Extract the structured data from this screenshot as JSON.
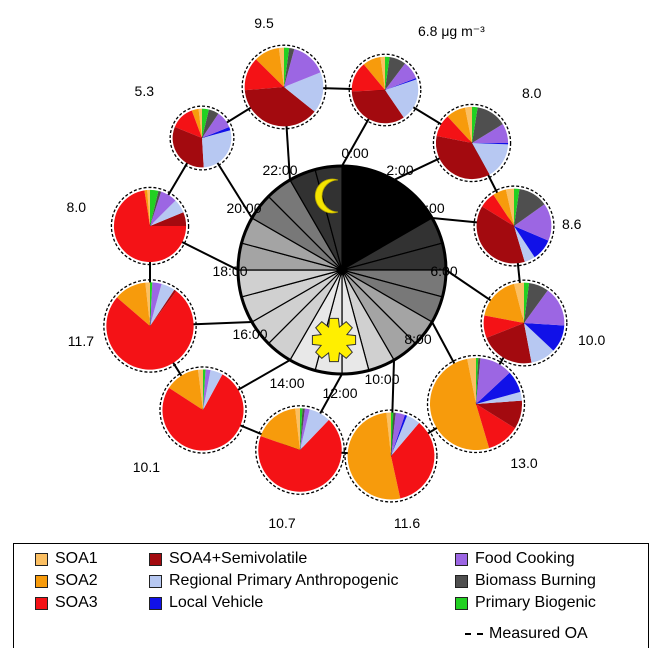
{
  "chart_data": {
    "type": "pie",
    "unit_label": "μg m⁻³",
    "colors": {
      "SOA1": "#fbbf62",
      "SOA2": "#f79b0c",
      "SOA3": "#f41216",
      "SOA4+Semivolatile": "#a30a0f",
      "Regional Primary Anthropogenic": "#b7c8f2",
      "Local Vehicle": "#1111e8",
      "Food Cooking": "#9c66e3",
      "Biomass Burning": "#4f4f4f",
      "Primary Biogenic": "#22d022"
    },
    "legend": {
      "items": [
        {
          "label": "SOA1",
          "key": "SOA1"
        },
        {
          "label": "SOA2",
          "key": "SOA2"
        },
        {
          "label": "SOA3",
          "key": "SOA3"
        },
        {
          "label": "SOA4+Semivolatile",
          "key": "SOA4+Semivolatile"
        },
        {
          "label": "Regional Primary Anthropogenic",
          "key": "Regional Primary Anthropogenic"
        },
        {
          "label": "Local Vehicle",
          "key": "Local Vehicle"
        },
        {
          "label": "Food Cooking",
          "key": "Food Cooking"
        },
        {
          "label": "Biomass Burning",
          "key": "Biomass Burning"
        },
        {
          "label": "Primary Biogenic",
          "key": "Primary Biogenic"
        }
      ],
      "measured_label": "Measured OA"
    },
    "clock_labels": [
      "0:00",
      "2:00",
      "4:00",
      "6:00",
      "8:00",
      "10:00",
      "12:00",
      "14:00",
      "16:00",
      "18:00",
      "20:00",
      "22:00"
    ],
    "hour_shading": [
      "#000000",
      "#000000",
      "#000000",
      "#000000",
      "#323232",
      "#323232",
      "#787878",
      "#787878",
      "#a4a4a4",
      "#a4a4a4",
      "#d0d0d0",
      "#e8e8e8",
      "#e8e8e8",
      "#e8e8e8",
      "#d0d0d0",
      "#d0d0d0",
      "#d0d0d0",
      "#d0d0d0",
      "#a4a4a4",
      "#a4a4a4",
      "#787878",
      "#787878",
      "#323232",
      "#323232"
    ],
    "pies": [
      {
        "time": "0:00",
        "total_label": "6.8 μg m⁻³",
        "total": 6.8,
        "slices": {
          "SOA2": 0.6,
          "SOA3": 1.0,
          "SOA4+Semivolatile": 2.3,
          "Regional Primary Anthropogenic": 1.4,
          "Local Vehicle": 0.05,
          "Food Cooking": 0.6,
          "Biomass Burning": 0.55,
          "Primary Biogenic": 0.15,
          "SOA1": 0.15
        }
      },
      {
        "time": "2:00",
        "total_label": "8.0",
        "total": 8.0,
        "slices": {
          "SOA1": 0.25,
          "SOA2": 0.7,
          "SOA3": 0.8,
          "SOA4+Semivolatile": 2.9,
          "Regional Primary Anthropogenic": 1.3,
          "Local Vehicle": 0.05,
          "Food Cooking": 0.7,
          "Biomass Burning": 1.1,
          "Primary Biogenic": 0.2
        }
      },
      {
        "time": "4:00",
        "total_label": "8.6",
        "total": 8.6,
        "slices": {
          "SOA1": 0.3,
          "SOA2": 0.5,
          "SOA3": 0.6,
          "SOA4+Semivolatile": 3.3,
          "Regional Primary Anthropogenic": 0.4,
          "Local Vehicle": 0.8,
          "Food Cooking": 1.4,
          "Biomass Burning": 1.1,
          "Primary Biogenic": 0.2
        }
      },
      {
        "time": "6:00",
        "total_label": "10.0",
        "total": 10.0,
        "slices": {
          "SOA1": 0.4,
          "SOA2": 1.8,
          "SOA3": 0.9,
          "SOA4+Semivolatile": 2.2,
          "Regional Primary Anthropogenic": 1.0,
          "Local Vehicle": 1.1,
          "Food Cooking": 1.6,
          "Biomass Burning": 0.8,
          "Primary Biogenic": 0.2
        }
      },
      {
        "time": "8:00",
        "total_label": "13.0",
        "total": 13.0,
        "slices": {
          "SOA1": 0.4,
          "SOA2": 6.7,
          "SOA3": 1.5,
          "SOA4+Semivolatile": 1.3,
          "Regional Primary Anthropogenic": 0.4,
          "Local Vehicle": 1.0,
          "Food Cooking": 1.5,
          "Biomass Burning": 0.1,
          "Primary Biogenic": 0.1
        }
      },
      {
        "time": "10:00",
        "total_label": "11.6",
        "total": 11.6,
        "slices": {
          "SOA1": 0.2,
          "SOA2": 6.0,
          "SOA3": 4.1,
          "SOA4+Semivolatile": 0.0,
          "Regional Primary Anthropogenic": 0.6,
          "Local Vehicle": 0.1,
          "Food Cooking": 0.4,
          "Biomass Burning": 0.1,
          "Primary Biogenic": 0.1
        }
      },
      {
        "time": "12:00",
        "total_label": "10.7",
        "total": 10.7,
        "slices": {
          "SOA1": 0.2,
          "SOA2": 1.9,
          "SOA3": 7.3,
          "SOA4+Semivolatile": 0.0,
          "Regional Primary Anthropogenic": 0.9,
          "Local Vehicle": 0.0,
          "Food Cooking": 0.2,
          "Biomass Burning": 0.1,
          "Primary Biogenic": 0.1
        }
      },
      {
        "time": "14:00",
        "total_label": "10.1",
        "total": 10.1,
        "slices": {
          "SOA1": 0.2,
          "SOA2": 1.4,
          "SOA3": 7.7,
          "SOA4+Semivolatile": 0.0,
          "Regional Primary Anthropogenic": 0.5,
          "Local Vehicle": 0.0,
          "Food Cooking": 0.2,
          "Biomass Burning": 0.0,
          "Primary Biogenic": 0.1
        }
      },
      {
        "time": "16:00",
        "total_label": "11.7",
        "total": 11.7,
        "slices": {
          "SOA1": 0.2,
          "SOA2": 1.4,
          "SOA3": 8.9,
          "SOA4+Semivolatile": 0.1,
          "Regional Primary Anthropogenic": 0.6,
          "Local Vehicle": 0.0,
          "Food Cooking": 0.4,
          "Biomass Burning": 0.0,
          "Primary Biogenic": 0.1
        }
      },
      {
        "time": "18:00",
        "total_label": "8.0",
        "total": 8.0,
        "slices": {
          "SOA1": 0.1,
          "SOA2": 0.1,
          "SOA3": 5.8,
          "SOA4+Semivolatile": 0.5,
          "Regional Primary Anthropogenic": 0.5,
          "Local Vehicle": 0.0,
          "Food Cooking": 0.6,
          "Biomass Burning": 0.1,
          "Primary Biogenic": 0.3
        }
      },
      {
        "time": "20:00",
        "total_label": "5.3",
        "total": 5.3,
        "slices": {
          "SOA1": 0.1,
          "SOA2": 0.2,
          "SOA3": 0.7,
          "SOA4+Semivolatile": 1.7,
          "Regional Primary Anthropogenic": 1.5,
          "Local Vehicle": 0.1,
          "Food Cooking": 0.5,
          "Biomass Burning": 0.3,
          "Primary Biogenic": 0.2
        }
      },
      {
        "time": "22:00",
        "total_label": "9.5",
        "total": 9.5,
        "slices": {
          "SOA1": 0.2,
          "SOA2": 1.0,
          "SOA3": 1.3,
          "SOA4+Semivolatile": 3.6,
          "Regional Primary Anthropogenic": 1.6,
          "Local Vehicle": 0.0,
          "Food Cooking": 1.4,
          "Biomass Burning": 0.2,
          "Primary Biogenic": 0.2
        }
      }
    ]
  }
}
